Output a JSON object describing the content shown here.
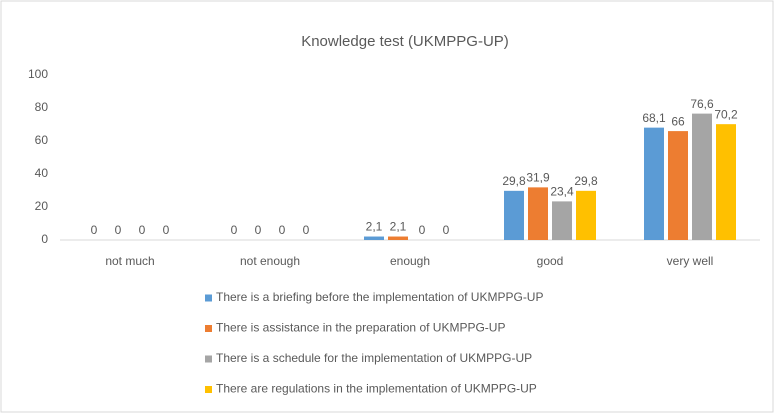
{
  "chart_data": {
    "type": "bar",
    "title": "Knowledge test (UKMPPG-UP)",
    "categories": [
      "not much",
      "not enough",
      "enough",
      "good",
      "very well"
    ],
    "series": [
      {
        "name": "There is a briefing before the implementation of UKMPPG-UP",
        "color": "#5b9bd5",
        "values": [
          0,
          0,
          2.1,
          29.8,
          68.1
        ],
        "value_labels": [
          "0",
          "0",
          "2,1",
          "29,8",
          "68,1"
        ]
      },
      {
        "name": "There is assistance in the preparation of UKMPPG-UP",
        "color": "#ed7d31",
        "values": [
          0,
          0,
          2.1,
          31.9,
          66
        ],
        "value_labels": [
          "0",
          "0",
          "2,1",
          "31,9",
          "66"
        ]
      },
      {
        "name": "There is a schedule for the implementation of UKMPPG-UP",
        "color": "#a5a5a5",
        "values": [
          0,
          0,
          0,
          23.4,
          76.6
        ],
        "value_labels": [
          "0",
          "0",
          "0",
          "23,4",
          "76,6"
        ]
      },
      {
        "name": "There are regulations in the implementation of UKMPPG-UP",
        "color": "#ffc000",
        "values": [
          0,
          0,
          0,
          29.8,
          70.2
        ],
        "value_labels": [
          "0",
          "0",
          "0",
          "29,8",
          "70,2"
        ]
      }
    ],
    "ylim": [
      0,
      100
    ],
    "yticks": [
      0,
      20,
      40,
      60,
      80,
      100
    ],
    "grid": false
  }
}
